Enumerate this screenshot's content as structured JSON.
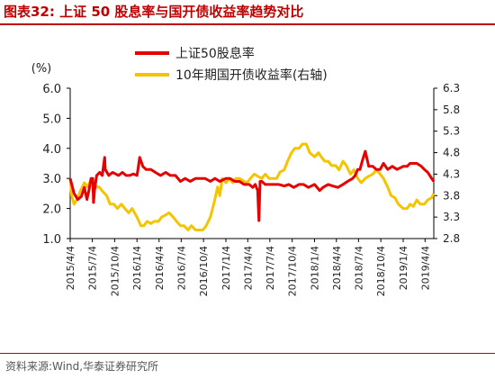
{
  "header": {
    "title": "图表32:   上证 50 股息率与国开债收益率趋势对比"
  },
  "footer": {
    "source": "资料来源:Wind,华泰证券研究所"
  },
  "colors": {
    "red": "#e60000",
    "yellow": "#f5c400",
    "title": "#c00000",
    "axis": "#000000"
  },
  "chart_data": {
    "type": "line",
    "left_axis_label": "(%)",
    "left_ylim": [
      1.0,
      6.0
    ],
    "left_ticks": [
      "1.0",
      "2.0",
      "3.0",
      "4.0",
      "5.0",
      "6.0"
    ],
    "right_ylim": [
      2.8,
      6.3
    ],
    "right_ticks": [
      "2.8",
      "3.3",
      "3.8",
      "4.3",
      "4.8",
      "5.3",
      "5.8",
      "6.3"
    ],
    "x_ticks": [
      "2015/4/4",
      "2015/7/4",
      "2015/10/4",
      "2016/1/4",
      "2016/4/4",
      "2016/7/4",
      "2016/10/4",
      "2017/1/4",
      "2017/4/4",
      "2017/7/4",
      "2017/10/4",
      "2018/1/4",
      "2018/4/4",
      "2018/7/4",
      "2018/10/4",
      "2019/1/4",
      "2019/4/4"
    ],
    "x_range": [
      "2015/4/4",
      "2019/5/10"
    ],
    "legend_placement": "top-center",
    "series": [
      {
        "name": "上证50股息率",
        "axis": "left",
        "color": "#e60000",
        "x": [
          "2015/4/4",
          "2015/4/20",
          "2015/5/5",
          "2015/5/20",
          "2015/6/1",
          "2015/6/12",
          "2015/6/20",
          "2015/6/29",
          "2015/7/6",
          "2015/7/9",
          "2015/7/13",
          "2015/7/22",
          "2015/8/3",
          "2015/8/14",
          "2015/8/24",
          "2015/8/26",
          "2015/9/10",
          "2015/9/25",
          "2015/10/8",
          "2015/10/20",
          "2015/11/5",
          "2015/11/20",
          "2015/12/5",
          "2015/12/20",
          "2016/1/4",
          "2016/1/8",
          "2016/1/15",
          "2016/1/28",
          "2016/2/10",
          "2016/3/1",
          "2016/3/20",
          "2016/4/10",
          "2016/5/1",
          "2016/5/20",
          "2016/6/10",
          "2016/7/1",
          "2016/7/20",
          "2016/8/10",
          "2016/9/1",
          "2016/9/20",
          "2016/10/10",
          "2016/11/1",
          "2016/11/20",
          "2016/12/10",
          "2017/1/4",
          "2017/1/20",
          "2017/2/10",
          "2017/3/1",
          "2017/3/20",
          "2017/4/10",
          "2017/4/25",
          "2017/5/5",
          "2017/5/15",
          "2017/5/20",
          "2017/5/25",
          "2017/6/1",
          "2017/6/15",
          "2017/7/1",
          "2017/7/20",
          "2017/8/10",
          "2017/9/1",
          "2017/9/20",
          "2017/10/10",
          "2017/11/1",
          "2017/11/20",
          "2017/12/10",
          "2018/1/4",
          "2018/1/25",
          "2018/2/8",
          "2018/3/1",
          "2018/3/20",
          "2018/4/10",
          "2018/5/1",
          "2018/5/20",
          "2018/6/10",
          "2018/6/20",
          "2018/7/1",
          "2018/7/10",
          "2018/7/20",
          "2018/8/1",
          "2018/8/15",
          "2018/9/1",
          "2018/9/15",
          "2018/10/1",
          "2018/10/15",
          "2018/11/1",
          "2018/11/20",
          "2018/12/10",
          "2019/1/4",
          "2019/1/20",
          "2019/2/1",
          "2019/2/15",
          "2019/3/1",
          "2019/3/20",
          "2019/4/1",
          "2019/4/15",
          "2019/5/1",
          "2019/5/10"
        ],
        "values": [
          3.0,
          2.5,
          2.3,
          2.4,
          2.7,
          2.3,
          2.6,
          3.0,
          3.0,
          2.2,
          2.6,
          3.1,
          3.2,
          3.1,
          3.7,
          3.3,
          3.1,
          3.2,
          3.15,
          3.1,
          3.2,
          3.1,
          3.1,
          3.15,
          3.1,
          3.3,
          3.7,
          3.4,
          3.3,
          3.3,
          3.2,
          3.1,
          3.2,
          3.1,
          3.1,
          2.9,
          3.0,
          2.9,
          3.0,
          3.0,
          3.0,
          2.9,
          3.0,
          2.9,
          3.0,
          3.0,
          2.9,
          2.9,
          2.8,
          2.8,
          2.7,
          2.8,
          2.6,
          1.6,
          2.9,
          2.9,
          2.8,
          2.8,
          2.8,
          2.8,
          2.75,
          2.8,
          2.7,
          2.8,
          2.8,
          2.7,
          2.8,
          2.6,
          2.7,
          2.8,
          2.75,
          2.7,
          2.8,
          2.9,
          3.0,
          3.1,
          3.3,
          3.3,
          3.6,
          3.9,
          3.4,
          3.4,
          3.3,
          3.3,
          3.5,
          3.3,
          3.4,
          3.3,
          3.4,
          3.4,
          3.5,
          3.5,
          3.5,
          3.4,
          3.3,
          3.2,
          3.0,
          2.9
        ]
      },
      {
        "name": "10年期国开债收益率(右轴)",
        "axis": "right",
        "color": "#f5c400",
        "x": [
          "2015/4/4",
          "2015/4/10",
          "2015/4/20",
          "2015/5/1",
          "2015/5/15",
          "2015/6/1",
          "2015/6/15",
          "2015/7/1",
          "2015/7/15",
          "2015/8/1",
          "2015/8/15",
          "2015/9/1",
          "2015/9/15",
          "2015/10/1",
          "2015/10/15",
          "2015/11/1",
          "2015/11/15",
          "2015/12/1",
          "2015/12/15",
          "2016/1/4",
          "2016/1/20",
          "2016/2/1",
          "2016/2/15",
          "2016/3/1",
          "2016/3/15",
          "2016/4/1",
          "2016/4/15",
          "2016/5/1",
          "2016/5/15",
          "2016/6/1",
          "2016/6/15",
          "2016/7/1",
          "2016/7/15",
          "2016/8/1",
          "2016/8/15",
          "2016/9/1",
          "2016/9/15",
          "2016/10/1",
          "2016/10/15",
          "2016/11/1",
          "2016/11/15",
          "2016/12/1",
          "2016/12/10",
          "2016/12/20",
          "2017/1/4",
          "2017/1/20",
          "2017/2/1",
          "2017/2/15",
          "2017/3/1",
          "2017/3/15",
          "2017/4/1",
          "2017/4/15",
          "2017/5/1",
          "2017/5/15",
          "2017/6/1",
          "2017/6/15",
          "2017/7/1",
          "2017/7/15",
          "2017/8/1",
          "2017/8/15",
          "2017/9/1",
          "2017/9/15",
          "2017/10/1",
          "2017/10/15",
          "2017/11/1",
          "2017/11/15",
          "2017/12/1",
          "2017/12/15",
          "2018/1/4",
          "2018/1/20",
          "2018/2/1",
          "2018/2/15",
          "2018/3/1",
          "2018/3/15",
          "2018/4/1",
          "2018/4/15",
          "2018/5/1",
          "2018/5/15",
          "2018/6/1",
          "2018/6/15",
          "2018/7/1",
          "2018/7/15",
          "2018/8/1",
          "2018/8/15",
          "2018/9/1",
          "2018/9/15",
          "2018/10/1",
          "2018/10/15",
          "2018/11/1",
          "2018/11/15",
          "2018/12/1",
          "2018/12/15",
          "2019/1/4",
          "2019/1/20",
          "2019/2/1",
          "2019/2/15",
          "2019/3/1",
          "2019/3/15",
          "2019/4/1",
          "2019/4/15",
          "2019/5/1",
          "2019/5/10"
        ],
        "values": [
          4.2,
          3.8,
          3.6,
          3.7,
          3.9,
          4.1,
          4.0,
          4.2,
          4.0,
          4.0,
          3.9,
          3.8,
          3.6,
          3.6,
          3.5,
          3.6,
          3.5,
          3.4,
          3.5,
          3.3,
          3.1,
          3.1,
          3.2,
          3.15,
          3.2,
          3.2,
          3.3,
          3.35,
          3.4,
          3.3,
          3.2,
          3.1,
          3.1,
          3.0,
          3.1,
          3.0,
          3.0,
          3.0,
          3.1,
          3.3,
          3.6,
          4.0,
          3.8,
          4.2,
          4.1,
          4.2,
          4.1,
          4.2,
          4.2,
          4.15,
          4.1,
          4.2,
          4.3,
          4.25,
          4.2,
          4.3,
          4.2,
          4.2,
          4.2,
          4.35,
          4.4,
          4.6,
          4.8,
          4.9,
          4.9,
          5.0,
          5.0,
          4.8,
          4.7,
          4.8,
          4.7,
          4.6,
          4.6,
          4.5,
          4.5,
          4.4,
          4.6,
          4.5,
          4.3,
          4.4,
          4.2,
          4.1,
          4.2,
          4.25,
          4.3,
          4.4,
          4.3,
          4.2,
          4.0,
          3.8,
          3.75,
          3.6,
          3.5,
          3.5,
          3.6,
          3.55,
          3.7,
          3.6,
          3.6,
          3.7,
          3.75,
          3.85
        ]
      }
    ]
  }
}
